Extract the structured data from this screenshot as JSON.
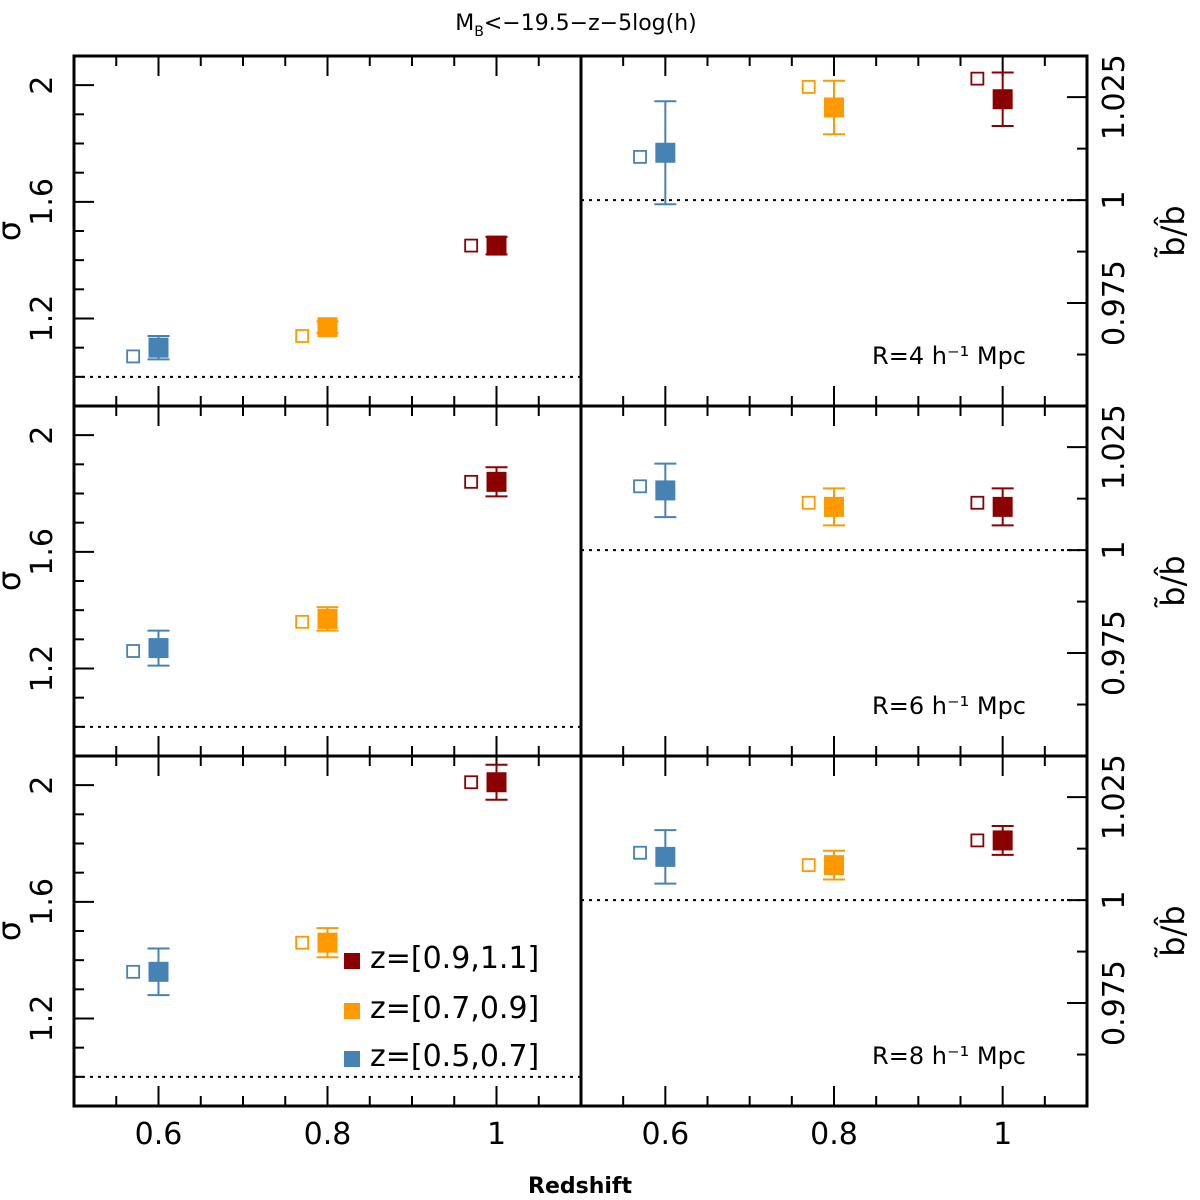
{
  "chart_data": {
    "type": "scatter",
    "title": "M_B<−19.5−z−5log(h)",
    "title_main": "M",
    "title_sub": "B",
    "title_rest": "<−19.5−z−5log(h)",
    "xlabel": "Redshift",
    "xlim": [
      0.5,
      1.1
    ],
    "x_ticks": [
      0.6,
      0.8,
      1.0
    ],
    "x_tick_labels": [
      "0.6",
      "0.8",
      "1"
    ],
    "left_panel": {
      "ylabel": "σ̂",
      "ylim": [
        0.9,
        2.1
      ],
      "y_ticks": [
        1.2,
        1.6,
        2.0
      ],
      "y_tick_labels": [
        "1.2",
        "1.6",
        "2"
      ],
      "reference_line": 1.0
    },
    "right_panel": {
      "ylabel": "b̃/b̂",
      "ylim": [
        0.95,
        1.035
      ],
      "y_ticks": [
        0.975,
        1.0,
        1.025
      ],
      "y_tick_labels": [
        "0.975",
        "1",
        "1.025"
      ],
      "reference_line": 1.0
    },
    "rows": [
      {
        "annotation": "R=4 h⁻¹ Mpc",
        "sigma": [
          {
            "z": 0.6,
            "value": 1.1,
            "err_low": 0.04,
            "err_high": 0.04,
            "open": 1.07,
            "color_key": "blue"
          },
          {
            "z": 0.8,
            "value": 1.17,
            "err_low": 0.02,
            "err_high": 0.02,
            "open": 1.14,
            "color_key": "orange"
          },
          {
            "z": 1.0,
            "value": 1.45,
            "err_low": 0.03,
            "err_high": 0.03,
            "open": 1.45,
            "color_key": "red"
          }
        ],
        "ratio": [
          {
            "z": 0.6,
            "value": 1.0115,
            "err_low": 0.0125,
            "err_high": 0.0125,
            "open": 1.0105,
            "color_key": "blue"
          },
          {
            "z": 0.8,
            "value": 1.0225,
            "err_low": 0.0065,
            "err_high": 0.0065,
            "open": 1.0275,
            "color_key": "orange"
          },
          {
            "z": 1.0,
            "value": 1.0245,
            "err_low": 0.0065,
            "err_high": 0.0065,
            "open": 1.0295,
            "color_key": "red"
          }
        ]
      },
      {
        "annotation": "R=6 h⁻¹ Mpc",
        "sigma": [
          {
            "z": 0.6,
            "value": 1.27,
            "err_low": 0.06,
            "err_high": 0.06,
            "open": 1.26,
            "color_key": "blue"
          },
          {
            "z": 0.8,
            "value": 1.37,
            "err_low": 0.04,
            "err_high": 0.04,
            "open": 1.36,
            "color_key": "orange"
          },
          {
            "z": 1.0,
            "value": 1.84,
            "err_low": 0.05,
            "err_high": 0.05,
            "open": 1.84,
            "color_key": "red"
          }
        ],
        "ratio": [
          {
            "z": 0.6,
            "value": 1.0145,
            "err_low": 0.0065,
            "err_high": 0.0065,
            "open": 1.0155,
            "color_key": "blue"
          },
          {
            "z": 0.8,
            "value": 1.0105,
            "err_low": 0.0045,
            "err_high": 0.0045,
            "open": 1.0115,
            "color_key": "orange"
          },
          {
            "z": 1.0,
            "value": 1.0105,
            "err_low": 0.0045,
            "err_high": 0.0045,
            "open": 1.0115,
            "color_key": "red"
          }
        ]
      },
      {
        "annotation": "R=8 h⁻¹ Mpc",
        "sigma": [
          {
            "z": 0.6,
            "value": 1.36,
            "err_low": 0.08,
            "err_high": 0.08,
            "open": 1.36,
            "color_key": "blue"
          },
          {
            "z": 0.8,
            "value": 1.46,
            "err_low": 0.05,
            "err_high": 0.05,
            "open": 1.46,
            "color_key": "orange"
          },
          {
            "z": 1.0,
            "value": 2.01,
            "err_low": 0.06,
            "err_high": 0.06,
            "open": 2.01,
            "color_key": "red"
          }
        ],
        "ratio": [
          {
            "z": 0.6,
            "value": 1.0105,
            "err_low": 0.0065,
            "err_high": 0.0065,
            "open": 1.0115,
            "color_key": "blue"
          },
          {
            "z": 0.8,
            "value": 1.0085,
            "err_low": 0.0035,
            "err_high": 0.0035,
            "open": 1.0085,
            "color_key": "orange"
          },
          {
            "z": 1.0,
            "value": 1.0145,
            "err_low": 0.0035,
            "err_high": 0.0035,
            "open": 1.0145,
            "color_key": "red"
          }
        ]
      }
    ],
    "legend": {
      "location": "bottom-left panel, lower-right",
      "entries": [
        {
          "label": "z=[0.9,1.1]",
          "color_key": "red"
        },
        {
          "label": "z=[0.7,0.9]",
          "color_key": "orange"
        },
        {
          "label": "z=[0.5,0.7]",
          "color_key": "blue"
        }
      ]
    },
    "colors": {
      "red": "#8b0000",
      "orange": "#ff9900",
      "blue": "#4682b4",
      "axis": "#000000",
      "background": "#ffffff"
    }
  }
}
